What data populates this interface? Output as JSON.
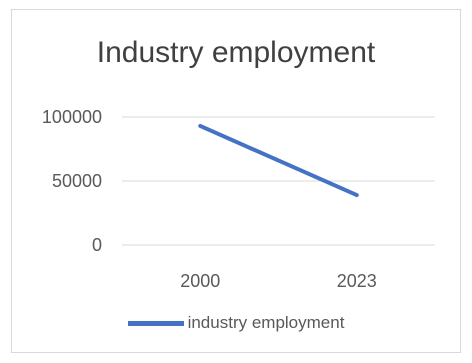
{
  "chart_data": {
    "type": "line",
    "title": "Industry employment",
    "categories": [
      "2000",
      "2023"
    ],
    "series": [
      {
        "name": "industry employment",
        "values": [
          93000,
          39000
        ],
        "color": "#4472c4"
      }
    ],
    "ylim": [
      0,
      100000
    ],
    "yticks": [
      "0",
      "50000",
      "100000"
    ],
    "grid": true,
    "legend": "bottom"
  }
}
